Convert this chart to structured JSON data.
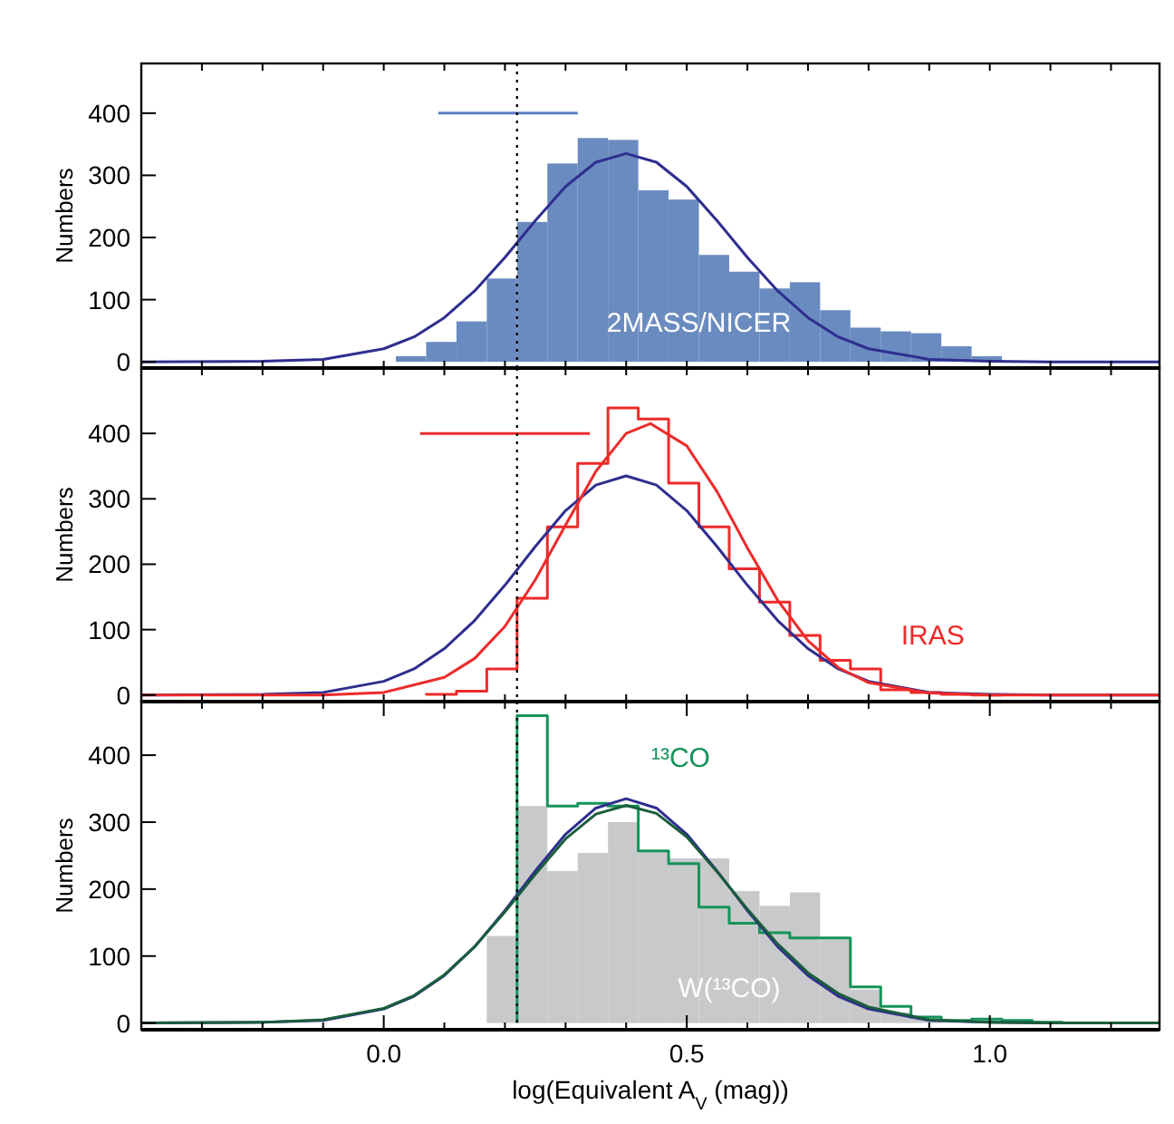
{
  "chart_data": [
    {
      "type": "histogram",
      "ylabel": "Numbers",
      "xlim": [
        -0.4,
        1.28
      ],
      "ylim": [
        -10,
        480
      ],
      "tick_labels": "y",
      "xticks": [
        {
          "value": -0.3,
          "label": null
        },
        {
          "value": -0.2,
          "label": null
        },
        {
          "value": -0.1,
          "label": null
        },
        {
          "value": 0,
          "label": null
        },
        {
          "value": 0.1,
          "label": null
        },
        {
          "value": 0.2,
          "label": null
        },
        {
          "value": 0.3,
          "label": null
        },
        {
          "value": 0.4,
          "label": null
        },
        {
          "value": 0.5,
          "label": null
        },
        {
          "value": 0.6,
          "label": null
        },
        {
          "value": 0.7,
          "label": null
        },
        {
          "value": 0.8,
          "label": null
        },
        {
          "value": 0.9,
          "label": null
        },
        {
          "value": 1,
          "label": null
        },
        {
          "value": 1.1,
          "label": null
        },
        {
          "value": 1.2,
          "label": null
        }
      ],
      "yticks": [
        0,
        100,
        200,
        300,
        400
      ],
      "ref_lines": [
        {
          "axis": "x",
          "value": 0.22,
          "line_style": "dotted",
          "color": "#000000"
        }
      ],
      "series": [
        {
          "name": "2MASS/NICER",
          "color": "#6a8bc0",
          "bins": [
            0.02,
            0.07,
            0.12,
            0.17,
            0.22,
            0.27,
            0.32,
            0.37,
            0.42,
            0.47,
            0.52,
            0.57,
            0.62,
            0.67,
            0.72,
            0.77,
            0.82,
            0.87,
            0.92,
            0.97,
            1.02
          ],
          "values": [
            9,
            32,
            65,
            134,
            225,
            319,
            360,
            357,
            276,
            261,
            172,
            145,
            118,
            128,
            83,
            55,
            49,
            46,
            25,
            9
          ]
        },
        {
          "type": "line",
          "color": "#2e2e8f",
          "x": [
            -0.4,
            -0.2,
            -0.1,
            0,
            0.05,
            0.1,
            0.15,
            0.2,
            0.25,
            0.3,
            0.35,
            0.4,
            0.45,
            0.5,
            0.55,
            0.6,
            0.65,
            0.7,
            0.75,
            0.8,
            0.9,
            1,
            1.1,
            1.28
          ],
          "values": [
            0,
            1,
            4,
            21,
            40,
            71,
            114,
            168,
            227,
            282,
            321,
            335,
            321,
            282,
            227,
            168,
            114,
            71,
            40,
            21,
            4,
            1,
            0,
            0
          ]
        },
        {
          "type": "line",
          "color": "#5b7fc4",
          "x": [
            0.09,
            0.32
          ],
          "values": [
            400,
            400
          ]
        }
      ]
    },
    {
      "type": "histogram",
      "ylabel": "Numbers",
      "xlim": [
        -0.4,
        1.28
      ],
      "ylim": [
        -10,
        500
      ],
      "tick_labels": "y",
      "xticks": [
        {
          "value": -0.3,
          "label": null
        },
        {
          "value": -0.2,
          "label": null
        },
        {
          "value": -0.1,
          "label": null
        },
        {
          "value": 0,
          "label": null
        },
        {
          "value": 0.1,
          "label": null
        },
        {
          "value": 0.2,
          "label": null
        },
        {
          "value": 0.3,
          "label": null
        },
        {
          "value": 0.4,
          "label": null
        },
        {
          "value": 0.5,
          "label": null
        },
        {
          "value": 0.6,
          "label": null
        },
        {
          "value": 0.7,
          "label": null
        },
        {
          "value": 0.8,
          "label": null
        },
        {
          "value": 0.9,
          "label": null
        },
        {
          "value": 1,
          "label": null
        },
        {
          "value": 1.1,
          "label": null
        },
        {
          "value": 1.2,
          "label": null
        }
      ],
      "yticks": [
        0,
        100,
        200,
        300,
        400
      ],
      "ref_lines": [
        {
          "axis": "x",
          "value": 0.22,
          "line_style": "dotted",
          "color": "#000000"
        }
      ],
      "series": [
        {
          "type": "step",
          "name": "IRAS",
          "color": "#ee2a2a",
          "x": [
            0.07,
            0.07,
            0.12,
            0.17,
            0.22,
            0.27,
            0.32,
            0.37,
            0.42,
            0.47,
            0.52,
            0.57,
            0.62,
            0.67,
            0.72,
            0.77,
            0.82,
            0.87,
            0.92,
            0.97,
            1.02
          ],
          "values": [
            0,
            1,
            6,
            40,
            148,
            257,
            354,
            439,
            422,
            324,
            257,
            193,
            142,
            91,
            53,
            40,
            8,
            4,
            1,
            0,
            0
          ]
        },
        {
          "type": "line",
          "color": "#2e2e8f",
          "x": [
            -0.4,
            -0.2,
            -0.1,
            0,
            0.05,
            0.1,
            0.15,
            0.2,
            0.25,
            0.3,
            0.35,
            0.4,
            0.45,
            0.5,
            0.55,
            0.6,
            0.65,
            0.7,
            0.75,
            0.8,
            0.9,
            1,
            1.1,
            1.28
          ],
          "values": [
            0,
            1,
            4,
            21,
            40,
            71,
            114,
            168,
            227,
            282,
            321,
            335,
            321,
            282,
            227,
            168,
            114,
            71,
            40,
            21,
            4,
            1,
            0,
            0
          ]
        },
        {
          "type": "line",
          "color": "#ee2a2a",
          "x": [
            -0.4,
            -0.1,
            0,
            0.1,
            0.15,
            0.2,
            0.25,
            0.3,
            0.35,
            0.4,
            0.44,
            0.5,
            0.55,
            0.6,
            0.65,
            0.7,
            0.75,
            0.8,
            0.9,
            1,
            1.28
          ],
          "values": [
            0,
            0,
            4,
            27,
            56,
            105,
            176,
            260,
            342,
            400,
            415,
            381,
            311,
            225,
            145,
            83,
            42,
            19,
            3,
            0,
            0
          ]
        },
        {
          "type": "line",
          "color": "#ee2a2a",
          "x": [
            0.06,
            0.34
          ],
          "values": [
            400,
            400
          ]
        }
      ]
    },
    {
      "type": "histogram",
      "ylabel": "Numbers",
      "xlabel": "log(Equivalent A$_{V}$ (mag))",
      "xlim": [
        -0.4,
        1.28
      ],
      "ylim": [
        -10,
        480
      ],
      "xticks": [
        {
          "value": -0.3,
          "label": null
        },
        {
          "value": -0.2,
          "label": null
        },
        {
          "value": -0.1,
          "label": null
        },
        {
          "value": 0,
          "label": "0.0"
        },
        {
          "value": 0.1,
          "label": null
        },
        {
          "value": 0.2,
          "label": null
        },
        {
          "value": 0.3,
          "label": null
        },
        {
          "value": 0.4,
          "label": null
        },
        {
          "value": 0.5,
          "label": "0.5"
        },
        {
          "value": 0.6,
          "label": null
        },
        {
          "value": 0.7,
          "label": null
        },
        {
          "value": 0.8,
          "label": null
        },
        {
          "value": 0.9,
          "label": null
        },
        {
          "value": 1,
          "label": "1.0"
        },
        {
          "value": 1.1,
          "label": null
        },
        {
          "value": 1.2,
          "label": null
        }
      ],
      "yticks": [
        0,
        100,
        200,
        300,
        400
      ],
      "ref_lines": [
        {
          "axis": "x",
          "value": 0.22,
          "line_style": "dotted",
          "color": "#000000"
        }
      ],
      "series": [
        {
          "name": "W(¹³CO)",
          "color": "#c8c9cb",
          "bins": [
            0.17,
            0.22,
            0.27,
            0.32,
            0.37,
            0.42,
            0.47,
            0.52,
            0.57,
            0.62,
            0.67,
            0.72,
            0.77,
            0.82,
            0.87,
            0.92,
            0.97
          ],
          "values": [
            130,
            324,
            227,
            254,
            300,
            257,
            246,
            246,
            197,
            175,
            195,
            125,
            50,
            16,
            8,
            null
          ]
        },
        {
          "type": "step",
          "name": "¹³CO",
          "color": "#14935a",
          "x": [
            0.22,
            0.22,
            0.27,
            0.32,
            0.37,
            0.42,
            0.47,
            0.52,
            0.57,
            0.62,
            0.67,
            0.72,
            0.77,
            0.82,
            0.87,
            0.92,
            0.97,
            1.02,
            1.07,
            1.12
          ],
          "values": [
            0,
            459,
            324,
            328,
            324,
            257,
            238,
            173,
            149,
            135,
            127,
            127,
            54,
            25,
            9,
            4,
            6,
            4,
            1,
            0
          ]
        },
        {
          "type": "line",
          "color": "#2e2e8f",
          "x": [
            -0.4,
            -0.2,
            -0.1,
            0,
            0.05,
            0.1,
            0.15,
            0.2,
            0.25,
            0.3,
            0.35,
            0.4,
            0.45,
            0.5,
            0.55,
            0.6,
            0.65,
            0.7,
            0.75,
            0.8,
            0.9,
            1,
            1.1,
            1.28
          ],
          "values": [
            0,
            1,
            4,
            21,
            40,
            71,
            114,
            168,
            227,
            282,
            321,
            335,
            321,
            282,
            227,
            168,
            114,
            71,
            40,
            21,
            4,
            1,
            0,
            0
          ]
        },
        {
          "type": "line",
          "color": "#1a5e3a",
          "x": [
            -0.4,
            -0.2,
            -0.1,
            0,
            0.05,
            0.1,
            0.15,
            0.2,
            0.25,
            0.3,
            0.35,
            0.4,
            0.45,
            0.5,
            0.55,
            0.6,
            0.65,
            0.7,
            0.75,
            0.8,
            0.9,
            1,
            1.1,
            1.28
          ],
          "values": [
            0,
            1,
            5,
            22,
            41,
            72,
            114,
            166,
            222,
            275,
            312,
            325,
            313,
            278,
            226,
            170,
            118,
            75,
            44,
            24,
            5,
            1,
            0,
            0
          ]
        }
      ]
    }
  ]
}
